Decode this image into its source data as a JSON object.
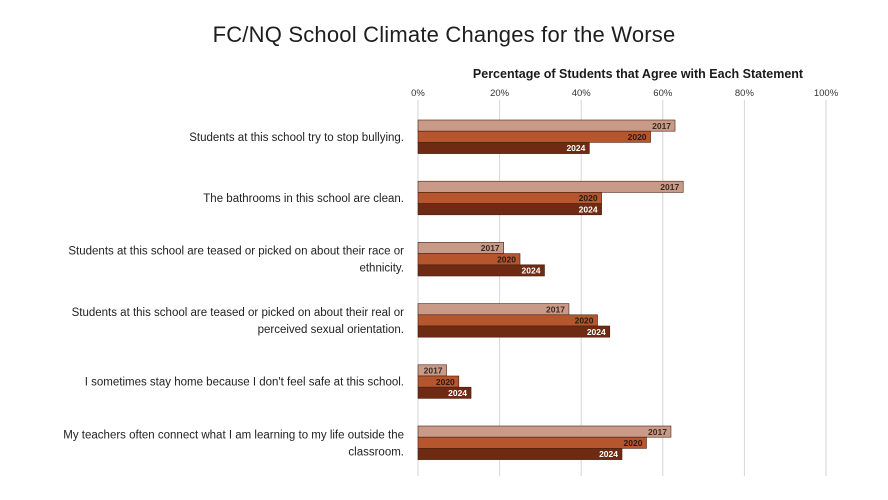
{
  "chart_data": {
    "type": "bar",
    "orientation": "horizontal",
    "title": "FC/NQ School Climate Changes for the Worse",
    "xlabel": "Percentage of Students that Agree with Each Statement",
    "xlim": [
      0,
      100
    ],
    "xticks": [
      "0%",
      "20%",
      "40%",
      "60%",
      "80%",
      "100%"
    ],
    "grid": true,
    "legend": "none",
    "categories": [
      [
        "Students at this school try to stop bullying."
      ],
      [
        "The bathrooms in this school are clean."
      ],
      [
        "Students at this school are teased or picked on about their race or",
        "ethnicity."
      ],
      [
        "Students at this school are teased or picked on about their real or",
        "perceived sexual orientation."
      ],
      [
        "I sometimes stay home because I don't feel safe at this school."
      ],
      [
        "My teachers often connect what I am learning to my life outside the",
        "classroom."
      ]
    ],
    "series": [
      {
        "name": "2017",
        "color": "#c99a88",
        "text_color": "#3a2a22",
        "values": [
          63,
          65,
          21,
          37,
          7,
          62
        ]
      },
      {
        "name": "2020",
        "color": "#b5562e",
        "text_color": "#2a1a12",
        "values": [
          57,
          45,
          25,
          44,
          10,
          56
        ]
      },
      {
        "name": "2024",
        "color": "#6e2a12",
        "text_color": "#ffffff",
        "values": [
          42,
          45,
          31,
          47,
          13,
          50
        ]
      }
    ]
  }
}
